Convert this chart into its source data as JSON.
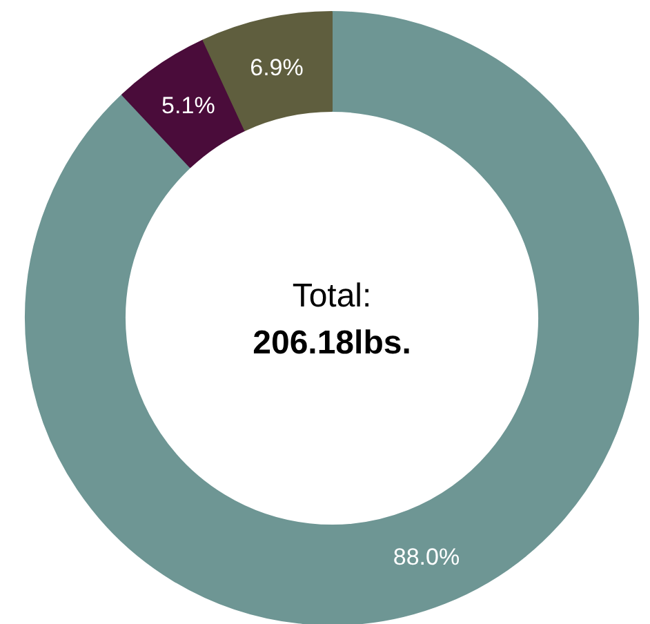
{
  "chart_data": {
    "type": "donut",
    "categories": [
      null,
      null,
      null
    ],
    "values": [
      88.0,
      5.1,
      6.9
    ],
    "colors": [
      "#6e9694",
      "#4a0c3a",
      "#5f5e3e"
    ],
    "value_labels": [
      "88.0%",
      "5.1%",
      "6.9%"
    ],
    "annotations": [
      "Total:",
      "206.18lbs."
    ]
  }
}
